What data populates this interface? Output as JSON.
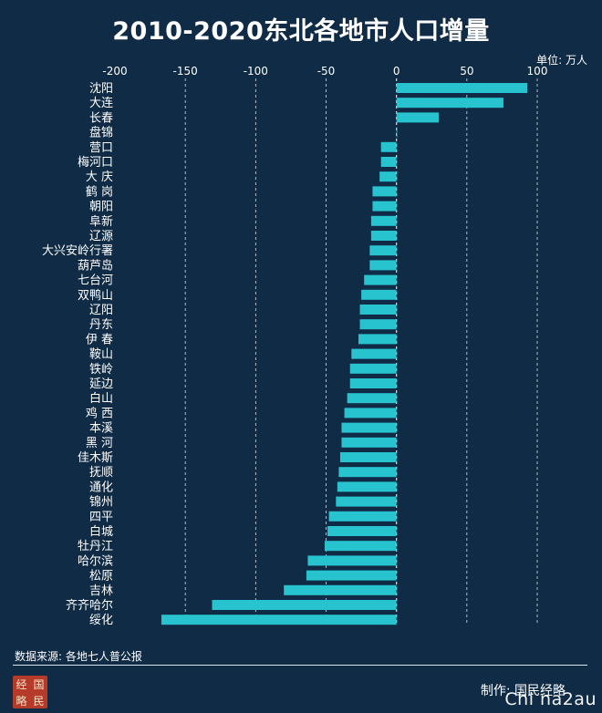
{
  "title": "2010-2020东北各地市人口增量",
  "unit_label": "单位: 万人",
  "source": "数据来源: 各地七人普公报",
  "maker": "制作: 国民经略",
  "watermark": "Chi na2au",
  "logo_chars": [
    "经",
    "国",
    "略",
    "民"
  ],
  "colors": {
    "background": "#0f2b45",
    "bar": "#27c3cf",
    "grid": "#ffffff",
    "text": "#ffffff"
  },
  "chart_data": {
    "type": "bar",
    "orientation": "horizontal",
    "title": "2010-2020东北各地市人口增量",
    "xlabel": "",
    "ylabel": "",
    "unit": "单位: 万人",
    "xlim": [
      -200,
      100
    ],
    "xticks": [
      -200,
      -150,
      -100,
      -50,
      0,
      50,
      100
    ],
    "xtick_labels": [
      "-200",
      "-150",
      "-100",
      "-50",
      "0",
      "50",
      "100"
    ],
    "grid": "vertical dashed",
    "legend": "none",
    "categories": [
      "沈阳",
      "大连",
      "长春",
      "盘锦",
      "营口",
      "梅河口",
      "大 庆",
      "鹤 岗",
      "朝阳",
      "阜新",
      "辽源",
      "大兴安岭行署",
      "葫芦岛",
      "七台河",
      "双鸭山",
      "辽阳",
      "丹东",
      "伊 春",
      "鞍山",
      "铁岭",
      "延边",
      "白山",
      "鸡 西",
      "本溪",
      "黑 河",
      "佳木斯",
      "抚顺",
      "通化",
      "锦州",
      "四平",
      "白城",
      "牡丹江",
      "哈尔滨",
      "松原",
      "吉林",
      "齐齐哈尔",
      "绥化"
    ],
    "values": [
      93,
      76,
      30,
      0.5,
      -11,
      -11,
      -12,
      -17,
      -17,
      -18,
      -18,
      -19,
      -19,
      -23,
      -25,
      -26,
      -26,
      -27,
      -32,
      -33,
      -33,
      -35,
      -37,
      -39,
      -39,
      -40,
      -41,
      -42,
      -43,
      -48,
      -49,
      -51,
      -63,
      -64,
      -80,
      -131,
      -167
    ]
  }
}
